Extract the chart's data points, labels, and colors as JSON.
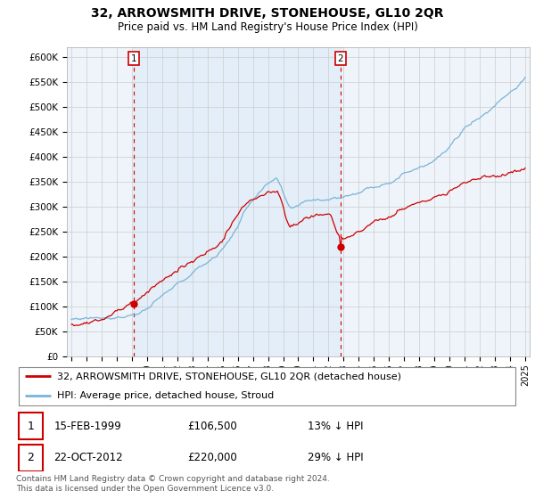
{
  "title": "32, ARROWSMITH DRIVE, STONEHOUSE, GL10 2QR",
  "subtitle": "Price paid vs. HM Land Registry's House Price Index (HPI)",
  "legend_line1": "32, ARROWSMITH DRIVE, STONEHOUSE, GL10 2QR (detached house)",
  "legend_line2": "HPI: Average price, detached house, Stroud",
  "annotation1": {
    "num": "1",
    "date": "15-FEB-1999",
    "price": "£106,500",
    "pct": "13% ↓ HPI"
  },
  "annotation2": {
    "num": "2",
    "date": "22-OCT-2012",
    "price": "£220,000",
    "pct": "29% ↓ HPI"
  },
  "footer": "Contains HM Land Registry data © Crown copyright and database right 2024.\nThis data is licensed under the Open Government Licence v3.0.",
  "hpi_color": "#7ab4d8",
  "price_color": "#cc0000",
  "annotation_color": "#cc0000",
  "shading_color": "#dceeff",
  "background_color": "#ffffff",
  "grid_color": "#cccccc",
  "ylim": [
    0,
    620000
  ],
  "yticks": [
    0,
    50000,
    100000,
    150000,
    200000,
    250000,
    300000,
    350000,
    400000,
    450000,
    500000,
    550000,
    600000
  ],
  "sale1_x": 1999.12,
  "sale1_y": 106500,
  "sale2_x": 2012.8,
  "sale2_y": 220000,
  "vline1_x": 1999.12,
  "vline2_x": 2012.8,
  "xlim_left": 1994.7,
  "xlim_right": 2025.3
}
